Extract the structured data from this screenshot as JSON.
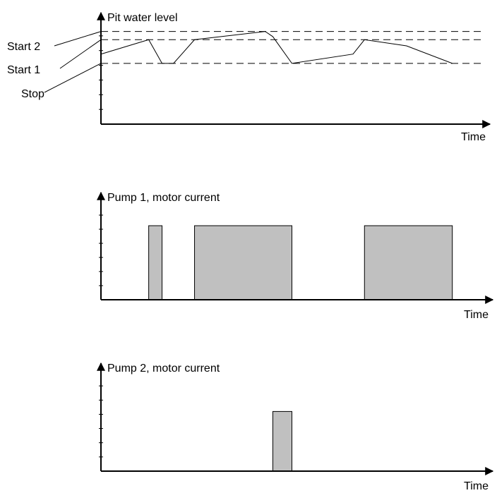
{
  "chart_data": [
    {
      "type": "line",
      "title": "",
      "xlabel": "Time",
      "ylabel": "Pit water level",
      "xlim": [
        0,
        100
      ],
      "ylim": [
        0,
        10
      ],
      "grid": false,
      "thresholds": [
        {
          "label": "Start 2",
          "value": 9.0
        },
        {
          "label": "Start 1",
          "value": 8.2
        },
        {
          "label": "Stop",
          "value": 5.9
        }
      ],
      "series": [
        {
          "x": [
            0,
            12.5,
            16,
            19,
            24.5,
            43,
            45,
            50,
            66,
            69,
            80,
            92
          ],
          "y": [
            6.8,
            8.2,
            5.9,
            5.9,
            8.2,
            9.0,
            8.5,
            5.9,
            6.8,
            8.2,
            7.6,
            5.9
          ]
        }
      ]
    },
    {
      "type": "bar",
      "title": "",
      "xlabel": "Time",
      "ylabel": "Pump 1, motor current",
      "xlim": [
        0,
        100
      ],
      "ylim": [
        0,
        10
      ],
      "grid": false,
      "bar_color": "#c0c0c0",
      "intervals": [
        {
          "start": 12.5,
          "end": 16,
          "value": 7.5
        },
        {
          "start": 24.5,
          "end": 50,
          "value": 7.5
        },
        {
          "start": 69,
          "end": 92,
          "value": 7.5
        }
      ]
    },
    {
      "type": "bar",
      "title": "",
      "xlabel": "Time",
      "ylabel": "Pump 2, motor current",
      "xlim": [
        0,
        100
      ],
      "ylim": [
        0,
        10
      ],
      "grid": false,
      "bar_color": "#c0c0c0",
      "intervals": [
        {
          "start": 45,
          "end": 50,
          "value": 6.0
        }
      ]
    }
  ]
}
